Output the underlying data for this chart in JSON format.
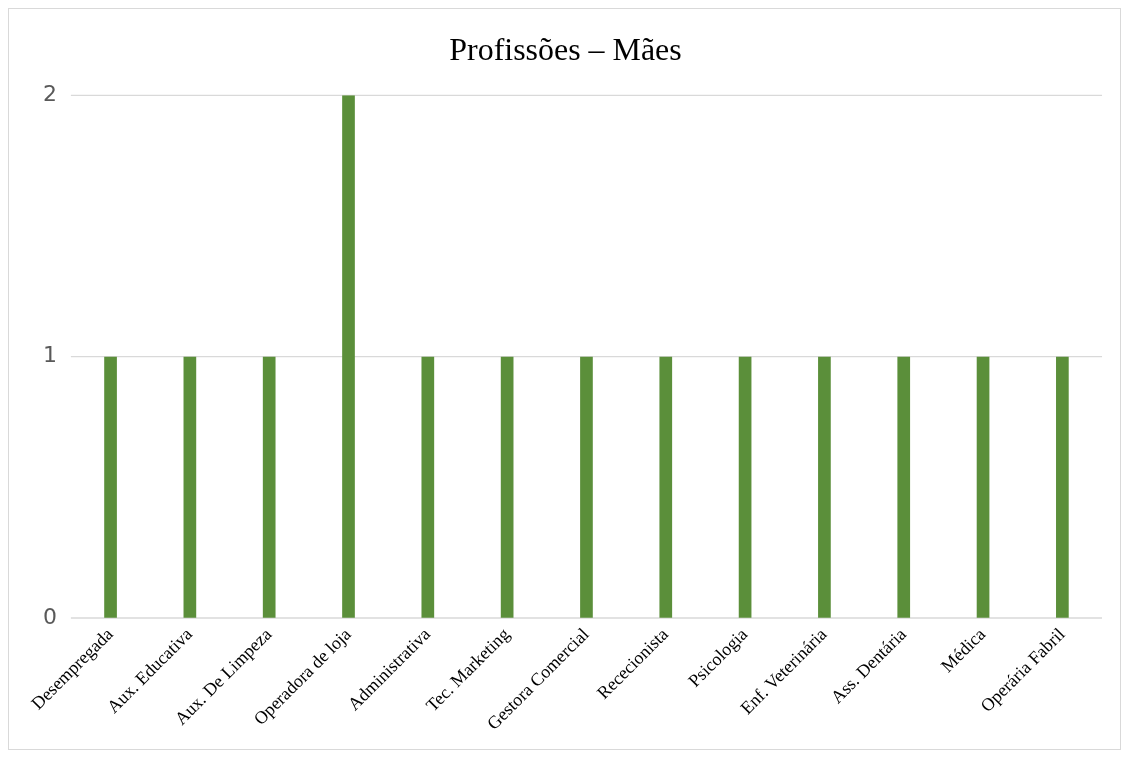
{
  "chart_data": {
    "type": "bar",
    "title": "Profissões – Mães",
    "categories": [
      "Desempregada",
      "Aux. Educativa",
      "Aux. De Limpeza",
      "Operadora de loja",
      "Administrativa",
      "Tec. Marketing",
      "Gestora Comercial",
      "Rececionista",
      "Psicologia",
      "Enf. Veterinária",
      "Ass. Dentária",
      "Médica",
      "Operária Fabril"
    ],
    "values": [
      1,
      1,
      1,
      2,
      1,
      1,
      1,
      1,
      1,
      1,
      1,
      1,
      1
    ],
    "color": "#5b8f3a",
    "ylim": [
      0,
      2
    ],
    "yticks": [
      0,
      1,
      2
    ],
    "grid": "y"
  }
}
